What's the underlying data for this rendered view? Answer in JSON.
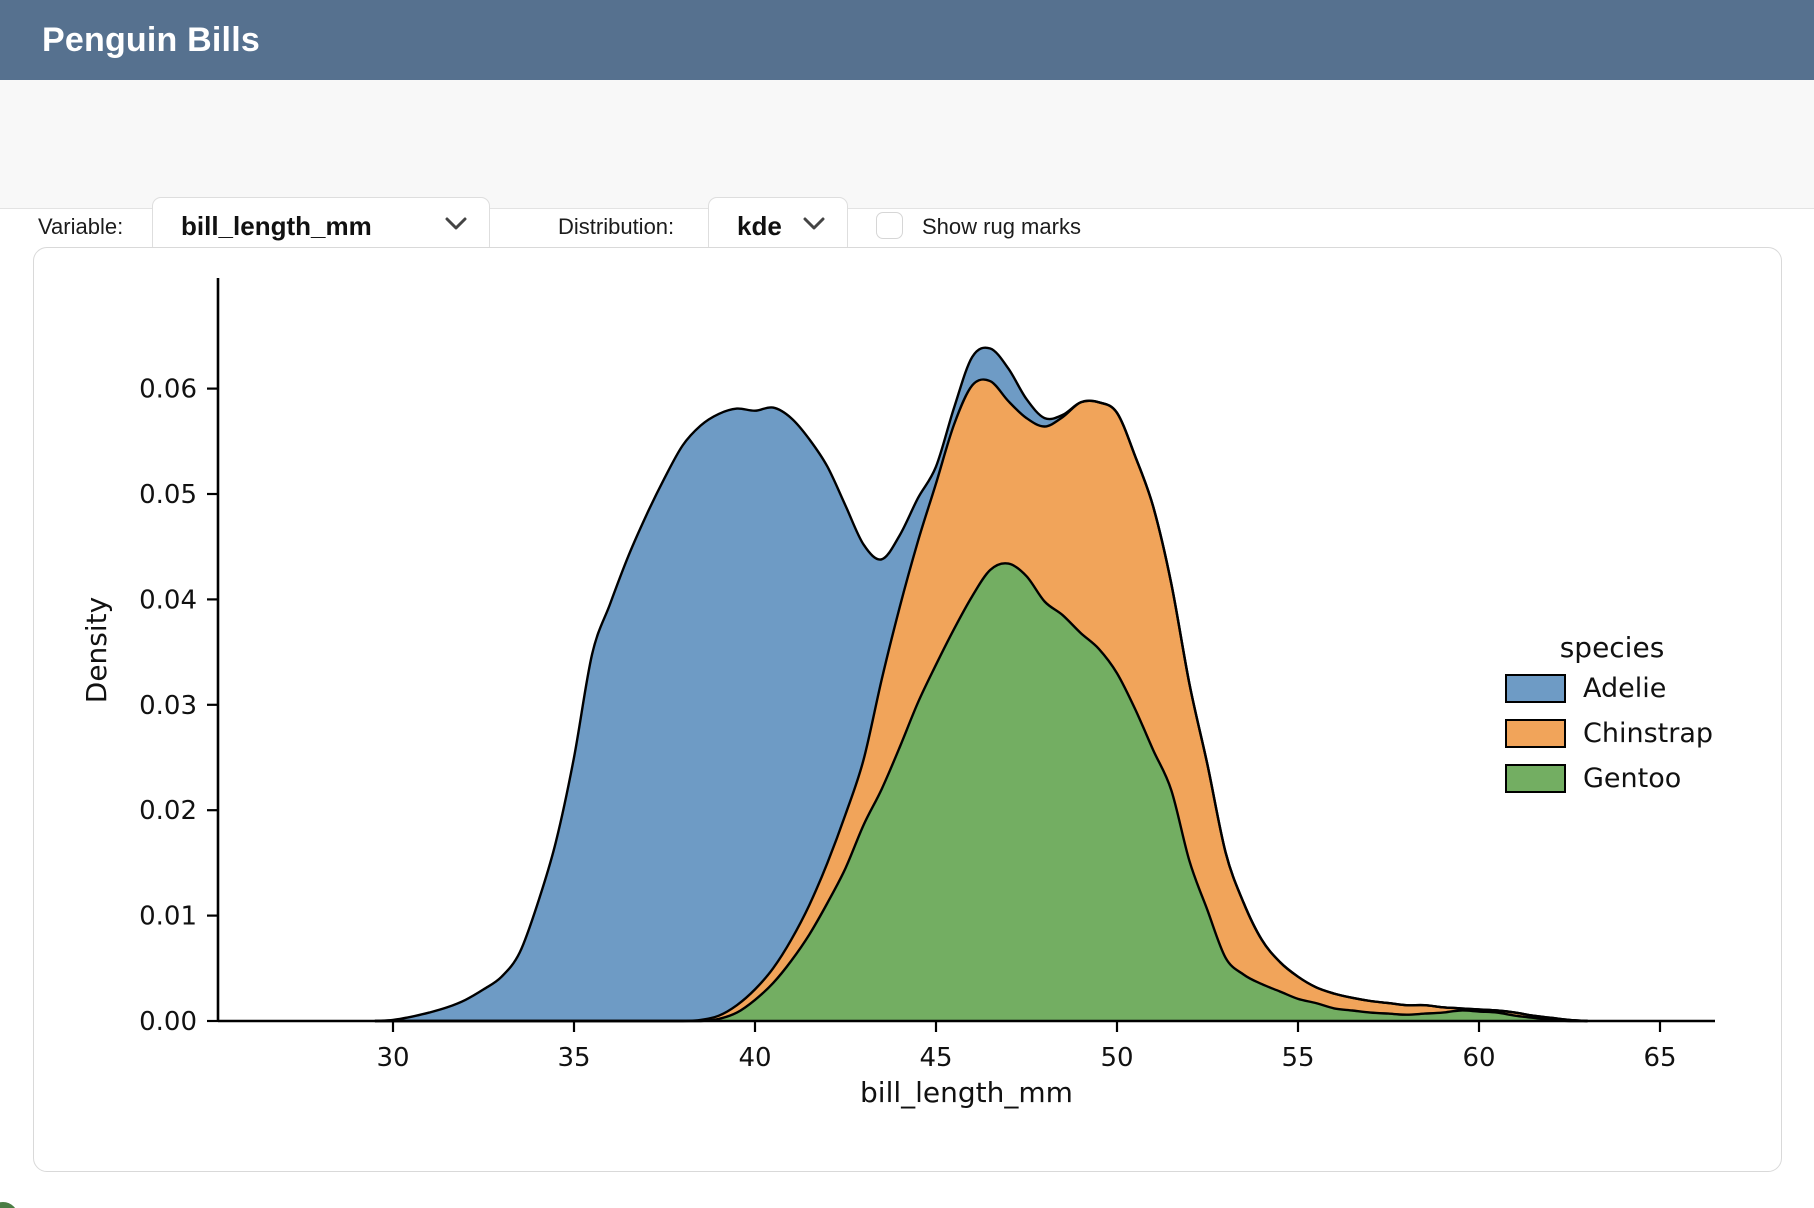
{
  "header": {
    "title": "Penguin Bills",
    "bg_color": "#56718F"
  },
  "toolbar": {
    "variable_label": "Variable:",
    "variable_value": "bill_length_mm",
    "distribution_label": "Distribution:",
    "distribution_value": "kde",
    "rug_label": "Show rug marks",
    "rug_checked": false
  },
  "chart_data": {
    "type": "area",
    "subtype": "stacked-kde-density",
    "title": "",
    "xlabel": "bill_length_mm",
    "ylabel": "Density",
    "x_ticks": [
      "30",
      "35",
      "40",
      "45",
      "50",
      "55",
      "60",
      "65"
    ],
    "y_ticks": [
      "0.00",
      "0.01",
      "0.02",
      "0.03",
      "0.04",
      "0.05",
      "0.06"
    ],
    "xlim": [
      25.2,
      66.5
    ],
    "ylim": [
      0,
      0.0705
    ],
    "grid": false,
    "legend_position": "right-outside",
    "stack_order": [
      "Gentoo",
      "Chinstrap",
      "Adelie"
    ],
    "x": [
      29.5,
      30,
      30.5,
      31,
      31.5,
      32,
      32.5,
      33,
      33.5,
      34,
      34.5,
      35,
      35.5,
      36,
      36.5,
      37,
      37.5,
      38,
      38.5,
      39,
      39.5,
      40,
      40.5,
      41,
      41.5,
      42,
      42.5,
      43,
      43.5,
      44,
      44.5,
      45,
      45.5,
      46,
      46.5,
      47,
      47.5,
      48,
      48.5,
      49,
      49.5,
      50,
      50.5,
      51,
      51.5,
      52,
      52.5,
      53,
      53.5,
      54,
      54.5,
      55,
      55.5,
      56,
      56.5,
      57,
      57.5,
      58,
      58.5,
      59,
      59.5,
      60,
      60.5,
      61,
      61.5,
      62,
      62.5,
      63
    ],
    "series": [
      {
        "name": "Adelie",
        "color": "#6E9BC5",
        "values": [
          0,
          0.0001,
          0.0004,
          0.0008,
          0.0013,
          0.002,
          0.003,
          0.0042,
          0.0065,
          0.0112,
          0.017,
          0.025,
          0.0348,
          0.0396,
          0.0441,
          0.048,
          0.0515,
          0.0546,
          0.0564,
          0.0571,
          0.0566,
          0.0549,
          0.0532,
          0.0495,
          0.0442,
          0.0376,
          0.0293,
          0.0204,
          0.0114,
          0.0068,
          0.0041,
          0.0016,
          0.0016,
          0.0027,
          0.0031,
          0.0031,
          0.0018,
          0.0008,
          0.0002,
          0,
          0,
          0,
          0,
          0,
          0,
          0,
          0,
          0,
          0,
          0,
          0,
          0,
          0,
          0,
          0,
          0,
          0,
          0,
          0,
          0,
          0,
          0,
          0,
          0,
          0,
          0,
          0,
          0
        ]
      },
      {
        "name": "Chinstrap",
        "color": "#F1A45A",
        "values": [
          0,
          0,
          0,
          0,
          0,
          0,
          0,
          0,
          0,
          0,
          0,
          0,
          0,
          0,
          0,
          0,
          0,
          0,
          0.0001,
          0.0003,
          0.0007,
          0.001,
          0.0014,
          0.002,
          0.0028,
          0.0038,
          0.0051,
          0.0062,
          0.0104,
          0.0133,
          0.0153,
          0.0172,
          0.0194,
          0.02,
          0.0179,
          0.0154,
          0.015,
          0.0166,
          0.0188,
          0.0219,
          0.0234,
          0.0247,
          0.024,
          0.0231,
          0.0196,
          0.0168,
          0.0138,
          0.01,
          0.0068,
          0.0042,
          0.0028,
          0.0021,
          0.0015,
          0.0014,
          0.0012,
          0.0011,
          0.001,
          0.0009,
          0.0008,
          0.0005,
          0.0002,
          0.0002,
          0.0002,
          0.0003,
          0.0002,
          0.0002,
          0.0001,
          0
        ]
      },
      {
        "name": "Gentoo",
        "color": "#73AE62",
        "values": [
          0,
          0,
          0,
          0,
          0,
          0,
          0,
          0,
          0,
          0,
          0,
          0,
          0,
          0,
          0,
          0,
          0,
          0,
          0,
          0.0002,
          0.0008,
          0.002,
          0.0036,
          0.0057,
          0.0082,
          0.0112,
          0.0145,
          0.0186,
          0.022,
          0.026,
          0.0302,
          0.0338,
          0.0372,
          0.0403,
          0.0428,
          0.0434,
          0.0422,
          0.0398,
          0.0385,
          0.0368,
          0.0353,
          0.033,
          0.0296,
          0.0257,
          0.0219,
          0.0152,
          0.0105,
          0.006,
          0.0044,
          0.0035,
          0.0028,
          0.0021,
          0.0017,
          0.0012,
          0.001,
          0.0008,
          0.0007,
          0.0006,
          0.0007,
          0.0008,
          0.001,
          0.0009,
          0.0008,
          0.0005,
          0.0003,
          0.0001,
          0,
          0
        ]
      }
    ],
    "legend": {
      "title": "species",
      "items": [
        {
          "label": "Adelie",
          "color": "#6E9BC5"
        },
        {
          "label": "Chinstrap",
          "color": "#F1A45A"
        },
        {
          "label": "Gentoo",
          "color": "#73AE62"
        }
      ]
    },
    "outline_color": "#000000"
  },
  "misc": {
    "corner_logo_color": "#4A7C44"
  }
}
